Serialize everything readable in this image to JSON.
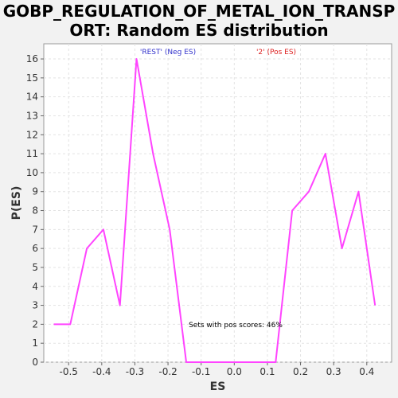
{
  "title_line1": "GOBP_REGULATION_OF_METAL_ION_TRANSP",
  "title_line2": "ORT: Random ES distribution",
  "chart_data": {
    "type": "line",
    "xlabel": "ES",
    "ylabel": "P(ES)",
    "xlim": [
      -0.575,
      0.475
    ],
    "ylim": [
      0,
      16.8
    ],
    "x_ticks": [
      -0.5,
      -0.4,
      -0.3,
      -0.2,
      -0.1,
      0.0,
      0.1,
      0.2,
      0.3,
      0.4
    ],
    "x_tick_labels": [
      "-0.5",
      "-0.4",
      "-0.3",
      "-0.2",
      "-0.1",
      "0.0",
      "0.1",
      "0.2",
      "0.3",
      "0.4"
    ],
    "y_ticks": [
      0,
      1,
      2,
      3,
      4,
      5,
      6,
      7,
      8,
      9,
      10,
      11,
      12,
      13,
      14,
      15,
      16
    ],
    "y_tick_labels": [
      "0",
      "1",
      "2",
      "3",
      "4",
      "5",
      "6",
      "7",
      "8",
      "9",
      "10",
      "11",
      "12",
      "13",
      "14",
      "15",
      "16"
    ],
    "grid": true,
    "series": [
      {
        "color": "#ff44ff",
        "x": [
          -0.545,
          -0.495,
          -0.445,
          -0.395,
          -0.345,
          -0.295,
          -0.245,
          -0.195,
          -0.145,
          -0.095,
          -0.045,
          0.005,
          0.055,
          0.105,
          0.125,
          0.175,
          0.225,
          0.275,
          0.325,
          0.375,
          0.425
        ],
        "y": [
          2,
          2,
          6,
          7,
          3,
          16,
          11,
          7,
          0,
          0,
          0,
          0,
          0,
          0,
          0,
          8,
          9,
          11,
          6,
          9,
          3
        ]
      }
    ],
    "legend": [
      {
        "label": "'REST' (Neg ES)",
        "color": "#3333cc"
      },
      {
        "label": "'2' (Pos ES)",
        "color": "#dd2222"
      }
    ],
    "annotation": "Sets with pos scores: 46%"
  }
}
